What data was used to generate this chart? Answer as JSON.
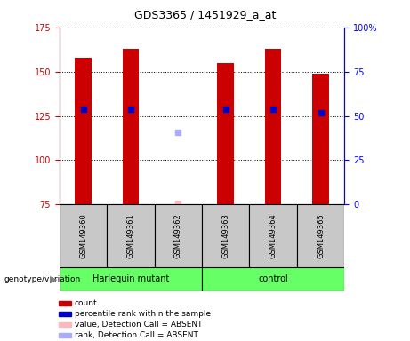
{
  "title": "GDS3365 / 1451929_a_at",
  "samples": [
    "GSM149360",
    "GSM149361",
    "GSM149362",
    "GSM149363",
    "GSM149364",
    "GSM149365"
  ],
  "bar_values": [
    158,
    163,
    null,
    155,
    163,
    149
  ],
  "bar_bottom": 75,
  "percentile_values": [
    129,
    129,
    null,
    129,
    129,
    127
  ],
  "absent_value_yval": 75.5,
  "absent_rank_yval": 116,
  "absent_sample_idx": 2,
  "ylim_left": [
    75,
    175
  ],
  "ylim_right": [
    0,
    100
  ],
  "yticks_left": [
    75,
    100,
    125,
    150,
    175
  ],
  "yticks_right": [
    0,
    25,
    50,
    75,
    100
  ],
  "ytick_labels_right": [
    "0",
    "25",
    "50",
    "75",
    "100%"
  ],
  "bar_color": "#CC0000",
  "percentile_color": "#0000CC",
  "absent_value_color": "#FFB6C1",
  "absent_rank_color": "#AAAAFF",
  "bar_width": 0.35,
  "sample_box_color": "#C8C8C8",
  "group_box_color": "#66FF66",
  "group_names": [
    "Harlequin mutant",
    "control"
  ],
  "group_ranges": [
    [
      0,
      2
    ],
    [
      3,
      5
    ]
  ],
  "genotype_label": "genotype/variation",
  "legend_items": [
    {
      "color": "#CC0000",
      "label": "count"
    },
    {
      "color": "#0000CC",
      "label": "percentile rank within the sample"
    },
    {
      "color": "#FFB6C1",
      "label": "value, Detection Call = ABSENT"
    },
    {
      "color": "#AAAAFF",
      "label": "rank, Detection Call = ABSENT"
    }
  ]
}
